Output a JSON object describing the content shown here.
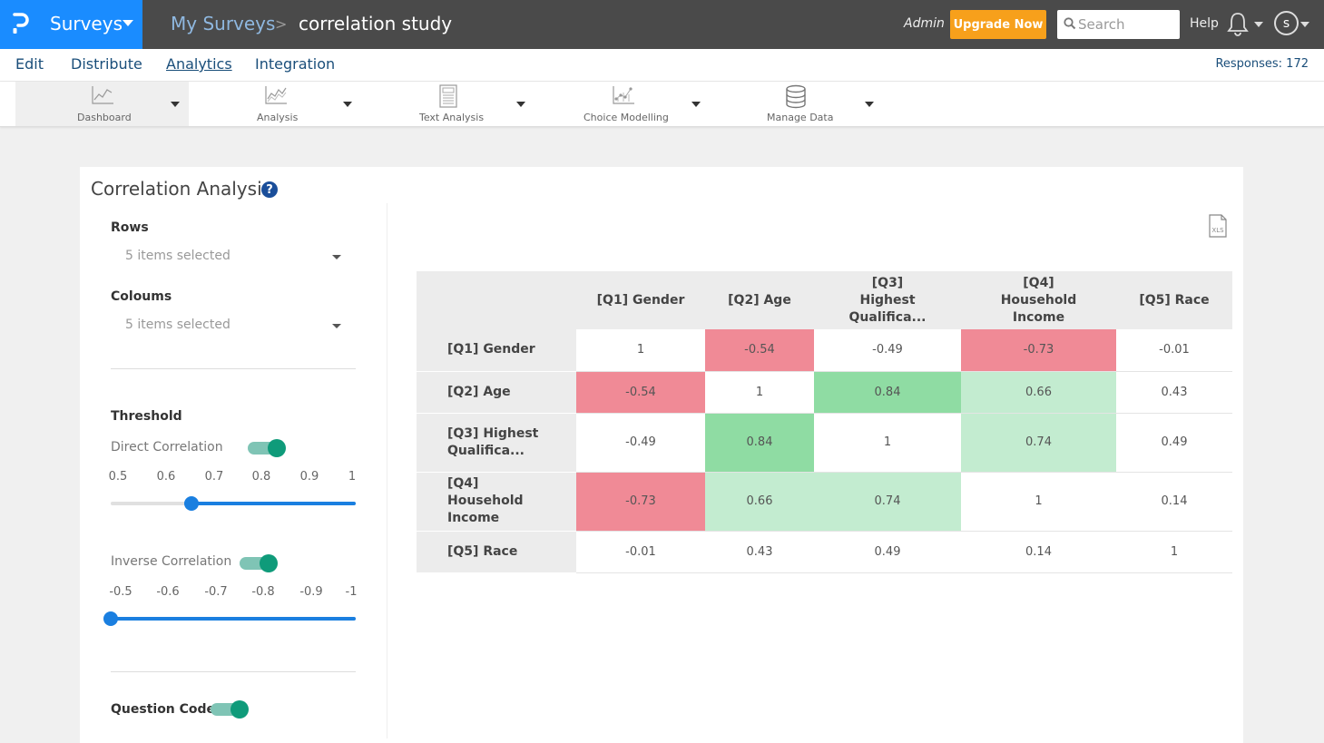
{
  "topbar": {
    "brand": "Surveys",
    "breadcrumb_parent": "My Surveys",
    "breadcrumb_sep": ">",
    "breadcrumb_current": "correlation study",
    "user_role": "Admin",
    "upgrade_label": "Upgrade Now",
    "search_placeholder": "Search",
    "help_label": "Help",
    "avatar_initial": "s",
    "brand_color": "#1a8cff",
    "upgrade_color": "#f7a01b"
  },
  "nav": {
    "items": [
      "Edit",
      "Distribute",
      "Analytics",
      "Integration"
    ],
    "active": "Analytics",
    "responses": "Responses: 172"
  },
  "toolbar": {
    "tools": [
      {
        "label": "Dashboard",
        "icon": "line-chart-icon"
      },
      {
        "label": "Analysis",
        "icon": "area-chart-icon"
      },
      {
        "label": "Text Analysis",
        "icon": "text-document-icon"
      },
      {
        "label": "Choice Modelling",
        "icon": "scatter-chart-icon"
      },
      {
        "label": "Manage Data",
        "icon": "database-icon"
      }
    ],
    "active": "Dashboard"
  },
  "panel": {
    "title": "Correlation Analysis",
    "help_glyph": "?",
    "rows_label": "Rows",
    "rows_value": "5 items selected",
    "columns_label": "Coloums",
    "columns_value": "5 items selected",
    "threshold_label": "Threshold",
    "direct_label": "Direct Correlation",
    "direct_enabled": true,
    "direct_ticks": [
      "0.5",
      "0.6",
      "0.7",
      "0.8",
      "0.9",
      "1"
    ],
    "direct_value": 0.65,
    "inverse_label": "Inverse Correlation",
    "inverse_enabled": true,
    "inverse_ticks": [
      "-0.5",
      "-0.6",
      "-0.7",
      "-0.8",
      "-0.9",
      "-1"
    ],
    "inverse_value": -0.5,
    "question_code_label": "Question Code:",
    "question_code_enabled": true
  },
  "matrix": {
    "headers": [
      "[Q1] Gender",
      "[Q2] Age",
      "[Q3] Highest Qualifica...",
      "[Q4] Household Income",
      "[Q5] Race"
    ],
    "rows": [
      {
        "label": "[Q1] Gender",
        "values": [
          "1",
          "-0.54",
          "-0.49",
          "-0.73",
          "-0.01"
        ],
        "highlight": [
          "",
          "neg",
          "",
          "neg",
          ""
        ]
      },
      {
        "label": "[Q2] Age",
        "values": [
          "-0.54",
          "1",
          "0.84",
          "0.66",
          "0.43"
        ],
        "highlight": [
          "neg",
          "",
          "strong",
          "med",
          ""
        ]
      },
      {
        "label": "[Q3] Highest Qualifica...",
        "values": [
          "-0.49",
          "0.84",
          "1",
          "0.74",
          "0.49"
        ],
        "highlight": [
          "",
          "strong",
          "",
          "med",
          ""
        ]
      },
      {
        "label": "[Q4] Household Income",
        "values": [
          "-0.73",
          "0.66",
          "0.74",
          "1",
          "0.14"
        ],
        "highlight": [
          "neg",
          "med",
          "med",
          "",
          ""
        ]
      },
      {
        "label": "[Q5] Race",
        "values": [
          "-0.01",
          "0.43",
          "0.49",
          "0.14",
          "1"
        ],
        "highlight": [
          "",
          "",
          "",
          "",
          ""
        ]
      }
    ],
    "colors": {
      "negative": "#f08a96",
      "strong_positive": "#8fdca3",
      "moderate_positive": "#c3ecd0"
    }
  }
}
